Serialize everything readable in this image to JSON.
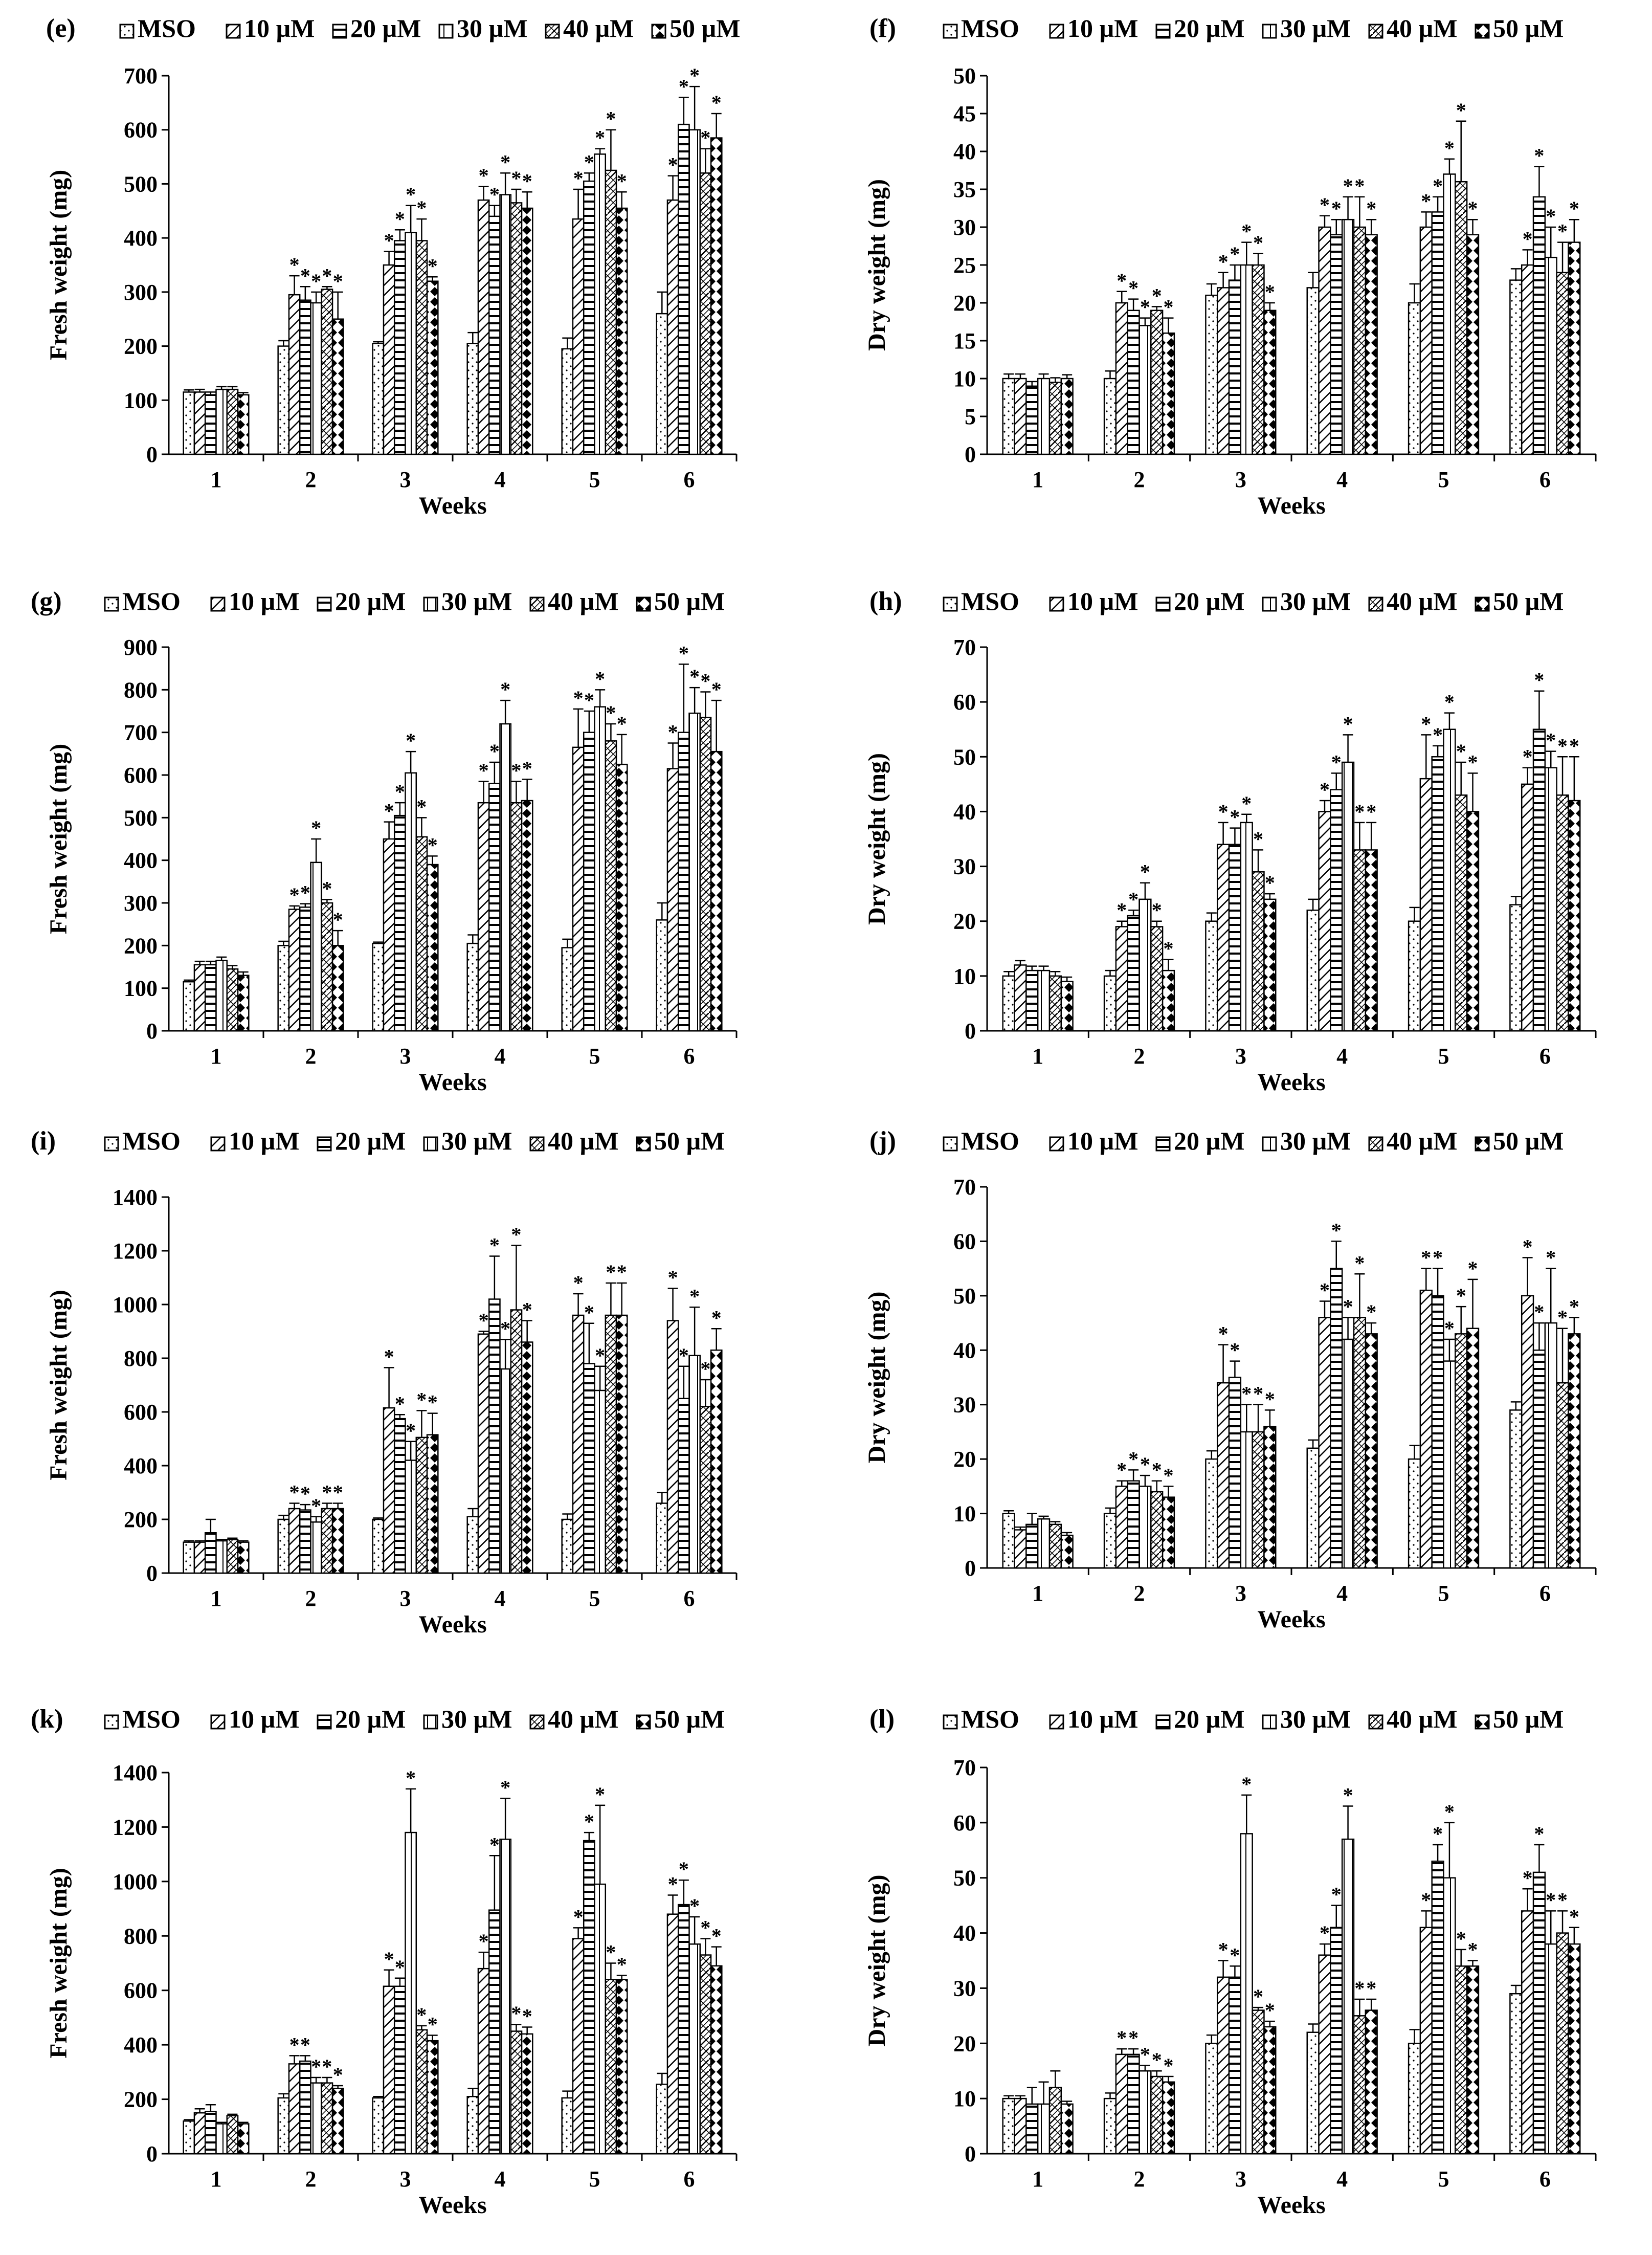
{
  "figure": {
    "legend_labels": [
      "MSO",
      "10 µM",
      "20 µM",
      "30 µM",
      "40 µM",
      "50 µM"
    ],
    "significance_marker": "*"
  },
  "chart_data": [
    {
      "panel": "(e)",
      "type": "bar",
      "xlabel": "Weeks",
      "ylabel": "Fresh weight (mg)",
      "ylim": [
        0,
        700
      ],
      "ytick_step": 100,
      "categories": [
        "1",
        "2",
        "3",
        "4",
        "5",
        "6"
      ],
      "series": [
        {
          "name": "MSO",
          "values": [
            115,
            200,
            205,
            205,
            195,
            260
          ],
          "errors": [
            4,
            10,
            3,
            20,
            20,
            40
          ]
        },
        {
          "name": "10 µM",
          "values": [
            115,
            295,
            350,
            470,
            435,
            470
          ],
          "errors": [
            5,
            35,
            25,
            25,
            55,
            45
          ]
        },
        {
          "name": "20 µM",
          "values": [
            110,
            285,
            395,
            440,
            505,
            610
          ],
          "errors": [
            5,
            25,
            20,
            20,
            15,
            50
          ]
        },
        {
          "name": "30 µM",
          "values": [
            120,
            280,
            410,
            480,
            555,
            600
          ],
          "errors": [
            5,
            20,
            50,
            40,
            10,
            80
          ]
        },
        {
          "name": "40 µM",
          "values": [
            120,
            305,
            395,
            465,
            525,
            520
          ],
          "errors": [
            5,
            5,
            40,
            25,
            75,
            45
          ]
        },
        {
          "name": "50 µM",
          "values": [
            110,
            250,
            320,
            455,
            455,
            585
          ],
          "errors": [
            4,
            50,
            8,
            30,
            30,
            45
          ]
        }
      ]
    },
    {
      "panel": "(f)",
      "type": "bar",
      "xlabel": "Weeks",
      "ylabel": "Dry weight (mg)",
      "ylim": [
        0,
        50
      ],
      "ytick_step": 5,
      "categories": [
        "1",
        "2",
        "3",
        "4",
        "5",
        "6"
      ],
      "series": [
        {
          "name": "MSO",
          "values": [
            10,
            10,
            21,
            22,
            20,
            23
          ],
          "errors": [
            0.6,
            1,
            1.5,
            2,
            2.5,
            1.5
          ]
        },
        {
          "name": "10 µM",
          "values": [
            10,
            20,
            22,
            30,
            30,
            25
          ],
          "errors": [
            0.6,
            1.5,
            2,
            1.5,
            2,
            2
          ]
        },
        {
          "name": "20 µM",
          "values": [
            9,
            19,
            23,
            29,
            32,
            34
          ],
          "errors": [
            0.6,
            1.5,
            2,
            2,
            2,
            4
          ]
        },
        {
          "name": "30 µM",
          "values": [
            10,
            17,
            25,
            31,
            37,
            26
          ],
          "errors": [
            0.6,
            1,
            3,
            3,
            2,
            4
          ]
        },
        {
          "name": "40 µM",
          "values": [
            9.5,
            19,
            25,
            30,
            36,
            24
          ],
          "errors": [
            0.6,
            0.5,
            1.5,
            4,
            8,
            4
          ]
        },
        {
          "name": "50 µM",
          "values": [
            10,
            16,
            19,
            29,
            29,
            28
          ],
          "errors": [
            0.5,
            2,
            1,
            2,
            2,
            3
          ]
        }
      ]
    },
    {
      "panel": "(g)",
      "type": "bar",
      "xlabel": "Weeks",
      "ylabel": "Fresh weight (mg)",
      "ylim": [
        0,
        900
      ],
      "ytick_step": 100,
      "categories": [
        "1",
        "2",
        "3",
        "4",
        "5",
        "6"
      ],
      "series": [
        {
          "name": "MSO",
          "values": [
            115,
            200,
            205,
            205,
            195,
            260
          ],
          "errors": [
            4,
            10,
            3,
            20,
            20,
            40
          ]
        },
        {
          "name": "10 µM",
          "values": [
            155,
            285,
            450,
            535,
            665,
            615
          ],
          "errors": [
            8,
            8,
            40,
            50,
            90,
            60
          ]
        },
        {
          "name": "20 µM",
          "values": [
            155,
            290,
            505,
            580,
            700,
            700
          ],
          "errors": [
            8,
            8,
            30,
            50,
            50,
            160
          ]
        },
        {
          "name": "30 µM",
          "values": [
            165,
            395,
            605,
            720,
            760,
            745
          ],
          "errors": [
            8,
            55,
            50,
            55,
            40,
            60
          ]
        },
        {
          "name": "40 µM",
          "values": [
            145,
            300,
            455,
            535,
            680,
            735
          ],
          "errors": [
            8,
            8,
            45,
            50,
            40,
            60
          ]
        },
        {
          "name": "50 µM",
          "values": [
            130,
            200,
            390,
            540,
            625,
            655
          ],
          "errors": [
            8,
            35,
            20,
            50,
            70,
            120
          ]
        }
      ]
    },
    {
      "panel": "(h)",
      "type": "bar",
      "xlabel": "Weeks",
      "ylabel": "Dry weight (mg)",
      "ylim": [
        0,
        70
      ],
      "ytick_step": 10,
      "categories": [
        "1",
        "2",
        "3",
        "4",
        "5",
        "6"
      ],
      "series": [
        {
          "name": "MSO",
          "values": [
            10,
            10,
            20,
            22,
            20,
            23
          ],
          "errors": [
            0.8,
            1,
            1.5,
            2,
            2.5,
            1.5
          ]
        },
        {
          "name": "10 µM",
          "values": [
            12,
            19,
            34,
            40,
            46,
            45
          ],
          "errors": [
            0.8,
            1,
            4,
            2,
            8,
            3
          ]
        },
        {
          "name": "20 µM",
          "values": [
            11,
            21,
            34,
            44,
            50,
            55
          ],
          "errors": [
            0.8,
            1,
            3,
            3,
            2,
            7
          ]
        },
        {
          "name": "30 µM",
          "values": [
            11,
            24,
            38,
            49,
            55,
            48
          ],
          "errors": [
            0.8,
            3,
            1.5,
            5,
            3,
            3
          ]
        },
        {
          "name": "40 µM",
          "values": [
            10,
            19,
            29,
            33,
            43,
            43
          ],
          "errors": [
            0.8,
            1,
            4,
            5,
            6,
            7
          ]
        },
        {
          "name": "50 µM",
          "values": [
            9,
            11,
            24,
            33,
            40,
            42
          ],
          "errors": [
            0.8,
            2,
            1,
            5,
            7,
            8
          ]
        }
      ]
    },
    {
      "panel": "(i)",
      "type": "bar",
      "xlabel": "Weeks",
      "ylabel": "Fresh weight (mg)",
      "ylim": [
        0,
        1400
      ],
      "ytick_step": 200,
      "categories": [
        "1",
        "2",
        "3",
        "4",
        "5",
        "6"
      ],
      "series": [
        {
          "name": "MSO",
          "values": [
            115,
            200,
            200,
            210,
            200,
            260
          ],
          "errors": [
            5,
            15,
            5,
            30,
            20,
            40
          ]
        },
        {
          "name": "10 µM",
          "values": [
            115,
            240,
            615,
            890,
            960,
            940
          ],
          "errors": [
            5,
            20,
            150,
            10,
            80,
            120
          ]
        },
        {
          "name": "20 µM",
          "values": [
            150,
            235,
            575,
            1020,
            780,
            650
          ],
          "errors": [
            50,
            20,
            15,
            160,
            150,
            120
          ]
        },
        {
          "name": "30 µM",
          "values": [
            120,
            190,
            420,
            760,
            680,
            810
          ],
          "errors": [
            5,
            20,
            70,
            110,
            90,
            180
          ]
        },
        {
          "name": "40 µM",
          "values": [
            125,
            240,
            505,
            980,
            960,
            620
          ],
          "errors": [
            5,
            20,
            100,
            240,
            120,
            100
          ]
        },
        {
          "name": "50 µM",
          "values": [
            115,
            240,
            515,
            860,
            960,
            830
          ],
          "errors": [
            5,
            20,
            80,
            80,
            120,
            80
          ]
        }
      ]
    },
    {
      "panel": "(j)",
      "type": "bar",
      "xlabel": "Weeks",
      "ylabel": "Dry weight (mg)",
      "ylim": [
        0,
        70
      ],
      "ytick_step": 10,
      "categories": [
        "1",
        "2",
        "3",
        "4",
        "5",
        "6"
      ],
      "series": [
        {
          "name": "MSO",
          "values": [
            10,
            10,
            20,
            22,
            20,
            29
          ],
          "errors": [
            0.5,
            1,
            1.5,
            1.5,
            2.5,
            1.5
          ]
        },
        {
          "name": "10 µM",
          "values": [
            7,
            15,
            34,
            46,
            51,
            50
          ],
          "errors": [
            0.5,
            1,
            7,
            3,
            4,
            7
          ]
        },
        {
          "name": "20 µM",
          "values": [
            8,
            16,
            35,
            55,
            50,
            40
          ],
          "errors": [
            2,
            2,
            3,
            5,
            5,
            5
          ]
        },
        {
          "name": "30 µM",
          "values": [
            9,
            15,
            25,
            42,
            38,
            45
          ],
          "errors": [
            0.5,
            2,
            5,
            4,
            4,
            10
          ]
        },
        {
          "name": "40 µM",
          "values": [
            8,
            14,
            25,
            46,
            43,
            34
          ],
          "errors": [
            0.5,
            2,
            5,
            8,
            5,
            10
          ]
        },
        {
          "name": "50 µM",
          "values": [
            6,
            13,
            26,
            43,
            44,
            43
          ],
          "errors": [
            0.5,
            2,
            3,
            2,
            9,
            3
          ]
        }
      ]
    },
    {
      "panel": "(k)",
      "type": "bar",
      "xlabel": "Weeks",
      "ylabel": "Fresh weight (mg)",
      "ylim": [
        0,
        1400
      ],
      "ytick_step": 200,
      "categories": [
        "1",
        "2",
        "3",
        "4",
        "5",
        "6"
      ],
      "series": [
        {
          "name": "MSO",
          "values": [
            120,
            205,
            205,
            210,
            205,
            255
          ],
          "errors": [
            5,
            15,
            5,
            30,
            25,
            40
          ]
        },
        {
          "name": "10 µM",
          "values": [
            150,
            330,
            615,
            680,
            790,
            880
          ],
          "errors": [
            15,
            30,
            60,
            60,
            40,
            70
          ]
        },
        {
          "name": "20 µM",
          "values": [
            155,
            340,
            615,
            895,
            1150,
            915
          ],
          "errors": [
            25,
            20,
            30,
            200,
            30,
            90
          ]
        },
        {
          "name": "30 µM",
          "values": [
            110,
            260,
            1180,
            1155,
            990,
            770
          ],
          "errors": [
            5,
            20,
            160,
            150,
            290,
            100
          ]
        },
        {
          "name": "40 µM",
          "values": [
            140,
            260,
            455,
            450,
            640,
            730
          ],
          "errors": [
            5,
            20,
            15,
            25,
            60,
            60
          ]
        },
        {
          "name": "50 µM",
          "values": [
            110,
            240,
            415,
            440,
            640,
            690
          ],
          "errors": [
            5,
            10,
            20,
            25,
            15,
            70
          ]
        }
      ]
    },
    {
      "panel": "(l)",
      "type": "bar",
      "xlabel": "Weeks",
      "ylabel": "Dry weight (mg)",
      "ylim": [
        0,
        70
      ],
      "ytick_step": 10,
      "categories": [
        "1",
        "2",
        "3",
        "4",
        "5",
        "6"
      ],
      "series": [
        {
          "name": "MSO",
          "values": [
            10,
            10,
            20,
            22,
            20,
            29
          ],
          "errors": [
            0.5,
            1,
            1.5,
            1.5,
            2.5,
            1.5
          ]
        },
        {
          "name": "10 µM",
          "values": [
            10,
            18,
            32,
            36,
            41,
            44
          ],
          "errors": [
            0.5,
            1,
            3,
            2,
            3,
            4
          ]
        },
        {
          "name": "20 µM",
          "values": [
            9,
            18,
            32,
            41,
            53,
            51
          ],
          "errors": [
            3,
            1,
            2,
            4,
            3,
            5
          ]
        },
        {
          "name": "30 µM",
          "values": [
            9,
            15,
            58,
            57,
            50,
            38
          ],
          "errors": [
            4,
            1,
            7,
            6,
            10,
            6
          ]
        },
        {
          "name": "40 µM",
          "values": [
            12,
            14,
            26,
            25,
            34,
            40
          ],
          "errors": [
            3,
            1,
            0.5,
            3,
            3,
            4
          ]
        },
        {
          "name": "50 µM",
          "values": [
            9,
            13,
            23,
            26,
            34,
            38
          ],
          "errors": [
            0.5,
            1,
            1,
            2,
            1,
            3
          ]
        }
      ]
    }
  ]
}
